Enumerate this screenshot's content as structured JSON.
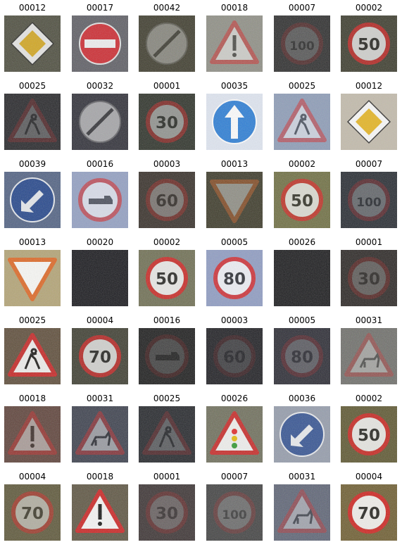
{
  "grid": {
    "tiles": [
      {
        "label": "00012",
        "sign": "priority",
        "bright": 0.85,
        "bg": "#4a4a3c"
      },
      {
        "label": "00017",
        "sign": "noentry",
        "bright": 0.9,
        "bg": "#5a5a60"
      },
      {
        "label": "00042",
        "sign": "endpass",
        "bright": 0.35,
        "bg": "#3c3a2c"
      },
      {
        "label": "00018",
        "sign": "danger",
        "bright": 0.55,
        "bg": "#8a8a80"
      },
      {
        "label": "00007",
        "sign": "speed",
        "bright": 0.18,
        "bg": "#2c2c2c",
        "text": "100"
      },
      {
        "label": "00002",
        "sign": "speed",
        "bright": 0.75,
        "bg": "#3a3a2c",
        "text": "50"
      },
      {
        "label": "00025",
        "sign": "roadwork",
        "bright": 0.22,
        "bg": "#252528"
      },
      {
        "label": "00032",
        "sign": "endall",
        "bright": 0.55,
        "bg": "#2e2e36"
      },
      {
        "label": "00001",
        "sign": "speed",
        "bright": 0.45,
        "bg": "#2c3028",
        "text": "30"
      },
      {
        "label": "00035",
        "sign": "ahead",
        "bright": 1.0,
        "bg": "#dfe6f2"
      },
      {
        "label": "00025",
        "sign": "roadwork",
        "bright": 0.55,
        "bg": "#8898b4"
      },
      {
        "label": "00012",
        "sign": "priority",
        "bright": 0.95,
        "bg": "#c0b8a8"
      },
      {
        "label": "00039",
        "sign": "keepleft",
        "bright": 0.85,
        "bg": "#4e5e7e"
      },
      {
        "label": "00016",
        "sign": "truck",
        "bright": 0.65,
        "bg": "#8e9cc0"
      },
      {
        "label": "00003",
        "sign": "speed",
        "bright": 0.3,
        "bg": "#352e28",
        "text": "60"
      },
      {
        "label": "00013",
        "sign": "yield",
        "bright": 0.4,
        "bg": "#3a3828"
      },
      {
        "label": "00002",
        "sign": "speed",
        "bright": 0.75,
        "bg": "#6a6a40",
        "text": "50"
      },
      {
        "label": "00007",
        "sign": "speed",
        "bright": 0.25,
        "bg": "#262a30",
        "text": "100"
      },
      {
        "label": "00013",
        "sign": "yield",
        "bright": 0.95,
        "bg": "#b0a070"
      },
      {
        "label": "00020",
        "sign": "none",
        "bright": 0.1,
        "bg": "#18181c"
      },
      {
        "label": "00002",
        "sign": "speed",
        "bright": 0.85,
        "bg": "#6a6a50",
        "text": "50"
      },
      {
        "label": "00005",
        "sign": "speed",
        "bright": 0.85,
        "bg": "#8a98c0",
        "text": "80"
      },
      {
        "label": "00026",
        "sign": "none",
        "bright": 0.1,
        "bg": "#1a1a1c"
      },
      {
        "label": "00001",
        "sign": "speed",
        "bright": 0.22,
        "bg": "#2a2624",
        "text": "30"
      },
      {
        "label": "00025",
        "sign": "roadwork",
        "bright": 0.9,
        "bg": "#5a4a38"
      },
      {
        "label": "00004",
        "sign": "speed",
        "bright": 0.75,
        "bg": "#3c3c30",
        "text": "70"
      },
      {
        "label": "00016",
        "sign": "truck",
        "bright": 0.15,
        "bg": "#1c1c1c"
      },
      {
        "label": "00003",
        "sign": "speed",
        "bright": 0.12,
        "bg": "#1e1e22",
        "text": "60"
      },
      {
        "label": "00005",
        "sign": "speed",
        "bright": 0.2,
        "bg": "#2a2a32",
        "text": "80"
      },
      {
        "label": "00031",
        "sign": "animal",
        "bright": 0.35,
        "bg": "#6a6a66"
      },
      {
        "label": "00018",
        "sign": "danger",
        "bright": 0.45,
        "bg": "#5a4038"
      },
      {
        "label": "00031",
        "sign": "animal",
        "bright": 0.45,
        "bg": "#3a3e4a"
      },
      {
        "label": "00025",
        "sign": "roadwork",
        "bright": 0.22,
        "bg": "#24262a"
      },
      {
        "label": "00026",
        "sign": "lights",
        "bright": 0.9,
        "bg": "#6a6a58"
      },
      {
        "label": "00036",
        "sign": "keepleft",
        "bright": 0.8,
        "bg": "#9098a8"
      },
      {
        "label": "00002",
        "sign": "speed",
        "bright": 0.85,
        "bg": "#5a5430",
        "text": "50"
      },
      {
        "label": "00004",
        "sign": "speed",
        "bright": 0.5,
        "bg": "#5a5438",
        "text": "70"
      },
      {
        "label": "00018",
        "sign": "danger",
        "bright": 0.95,
        "bg": "#5a5240"
      },
      {
        "label": "00001",
        "sign": "speed",
        "bright": 0.2,
        "bg": "#3a3232",
        "text": "30"
      },
      {
        "label": "00007",
        "sign": "speed",
        "bright": 0.2,
        "bg": "#404040",
        "text": "100"
      },
      {
        "label": "00031",
        "sign": "animal",
        "bright": 0.4,
        "bg": "#5a6070"
      },
      {
        "label": "00004",
        "sign": "speed",
        "bright": 0.9,
        "bg": "#6a5a30",
        "text": "70"
      }
    ]
  }
}
